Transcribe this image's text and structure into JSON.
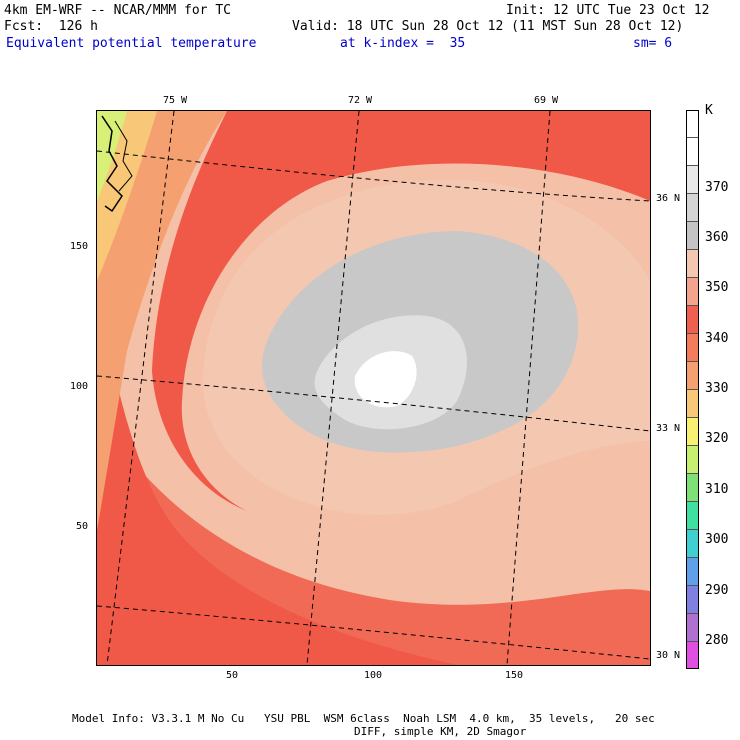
{
  "header": {
    "line1_left": "4km EM-WRF -- NCAR/MMM for TC",
    "line1_right": "Init: 12 UTC Tue 23 Oct 12",
    "line2_left": "Fcst:  126 h",
    "line2_right": "Valid: 18 UTC Sun 28 Oct 12 (11 MST Sun 28 Oct 12)",
    "field": "Equivalent potential temperature",
    "level": "at k-index =  35",
    "smooth": "sm= 6"
  },
  "map": {
    "lon_labels": [
      "75 W",
      "72 W",
      "69 W"
    ],
    "lat_labels": [
      "36 N",
      "33 N",
      "30 N"
    ],
    "x_ticks": [
      "50",
      "100",
      "150"
    ],
    "y_ticks": [
      "150",
      "100",
      "50"
    ]
  },
  "colorbar": {
    "unit": "K",
    "labels": [
      "370",
      "360",
      "350",
      "340",
      "330",
      "320",
      "310",
      "300",
      "290",
      "280"
    ],
    "colors": [
      "#ffffff",
      "#f0f0f0",
      "#e4e4e4",
      "#d0d0d0",
      "#b8b8b8",
      "#f4c8b0",
      "#f4a48c",
      "#f06050",
      "#f47c5c",
      "#f4a070",
      "#f8c878",
      "#f8f070",
      "#c8f070",
      "#80e078",
      "#40e0a0",
      "#40d0d0",
      "#60a0e8",
      "#8080e0",
      "#b070d0",
      "#e050e0"
    ]
  },
  "footer": {
    "line1": "Model Info: V3.3.1 M No Cu   YSU PBL  WSM 6class  Noah LSM  4.0 km,  35 levels,   20 sec",
    "line2": "DIFF, simple KM, 2D Smagor"
  }
}
